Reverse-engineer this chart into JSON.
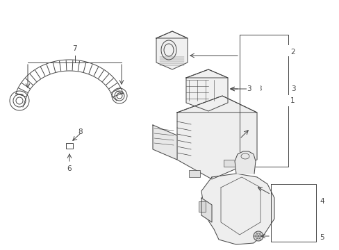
{
  "bg_color": "#ffffff",
  "line_color": "#444444",
  "label_color": "#000000",
  "fig_width": 4.89,
  "fig_height": 3.6,
  "dpi": 100,
  "label_fontsize": 7.5
}
